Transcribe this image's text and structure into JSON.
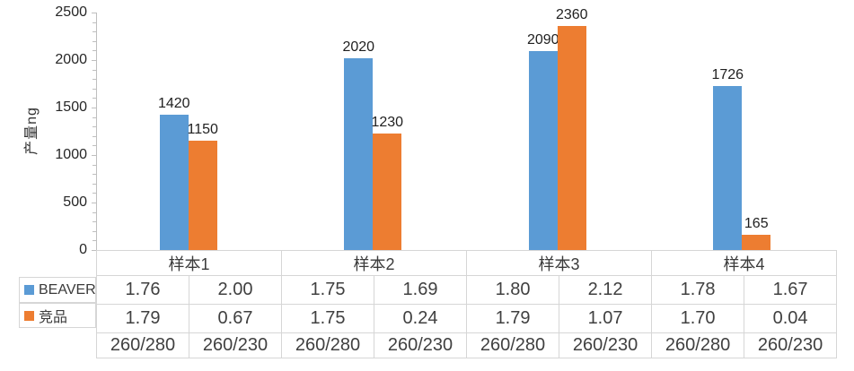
{
  "chart_data": {
    "type": "bar",
    "title": "",
    "xlabel": "",
    "ylabel": "产量ng",
    "ylim": [
      0,
      2500
    ],
    "y_ticks": [
      0,
      500,
      1000,
      1500,
      2000,
      2500
    ],
    "y_minor_tick_interval": 100,
    "grid": false,
    "data_labels": true,
    "legend_position": "left-of-data-table",
    "categories": [
      "样本1",
      "样本2",
      "样本3",
      "样本4"
    ],
    "series": [
      {
        "name": "BEAVER",
        "color": "#5B9BD5",
        "values": [
          1420,
          2020,
          2090,
          1726
        ]
      },
      {
        "name": "竞品",
        "color": "#ED7D31",
        "values": [
          1150,
          1230,
          2360,
          165
        ]
      }
    ],
    "data_table": {
      "sub_columns": [
        "260/280",
        "260/230"
      ],
      "rows": [
        {
          "series": "BEAVER",
          "key_color": "#5B9BD5",
          "values": [
            "1.76",
            "2.00",
            "1.75",
            "1.69",
            "1.80",
            "2.12",
            "1.78",
            "1.67"
          ]
        },
        {
          "series": "竞品",
          "key_color": "#ED7D31",
          "values": [
            "1.79",
            "0.67",
            "1.75",
            "0.24",
            "1.79",
            "1.07",
            "1.70",
            "0.04"
          ]
        }
      ]
    },
    "colors": {
      "axis_line": "#BFBFBF",
      "table_border": "#D6D6D6",
      "text": "#404040"
    }
  }
}
